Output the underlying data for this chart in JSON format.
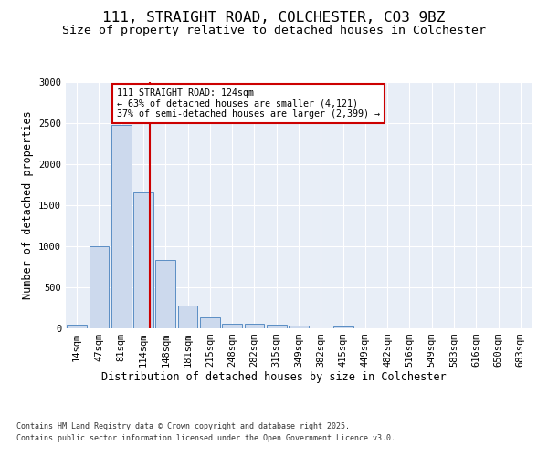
{
  "title_line1": "111, STRAIGHT ROAD, COLCHESTER, CO3 9BZ",
  "title_line2": "Size of property relative to detached houses in Colchester",
  "xlabel": "Distribution of detached houses by size in Colchester",
  "ylabel": "Number of detached properties",
  "categories": [
    "14sqm",
    "47sqm",
    "81sqm",
    "114sqm",
    "148sqm",
    "181sqm",
    "215sqm",
    "248sqm",
    "282sqm",
    "315sqm",
    "349sqm",
    "382sqm",
    "415sqm",
    "449sqm",
    "482sqm",
    "516sqm",
    "549sqm",
    "583sqm",
    "616sqm",
    "650sqm",
    "683sqm"
  ],
  "values": [
    50,
    1005,
    2480,
    1660,
    830,
    280,
    130,
    60,
    55,
    50,
    35,
    0,
    18,
    0,
    0,
    0,
    0,
    0,
    0,
    0,
    0
  ],
  "bar_color": "#ccd9ed",
  "bar_edge_color": "#5b8ec4",
  "property_label": "111 STRAIGHT ROAD: 124sqm",
  "annotation_line1": "← 63% of detached houses are smaller (4,121)",
  "annotation_line2": "37% of semi-detached houses are larger (2,399) →",
  "vline_color": "#cc0000",
  "annotation_box_color": "#cc0000",
  "ylim": [
    0,
    3000
  ],
  "yticks": [
    0,
    500,
    1000,
    1500,
    2000,
    2500,
    3000
  ],
  "background_color": "#e8eef7",
  "footer_line1": "Contains HM Land Registry data © Crown copyright and database right 2025.",
  "footer_line2": "Contains public sector information licensed under the Open Government Licence v3.0.",
  "title_fontsize": 11.5,
  "subtitle_fontsize": 9.5,
  "axis_label_fontsize": 8.5,
  "tick_fontsize": 7.5,
  "footer_fontsize": 6.0
}
